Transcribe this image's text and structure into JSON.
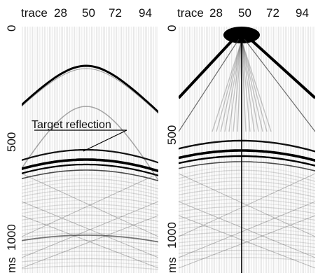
{
  "x_axis": {
    "label": "trace",
    "ticks": [
      "28",
      "50",
      "72",
      "94"
    ]
  },
  "y_axis": {
    "unit": "ms",
    "ticks": [
      "0",
      "500",
      "1000"
    ]
  },
  "annotation": {
    "text": "Target reflection"
  },
  "panels": [
    {
      "id": "left",
      "description_hidden": true
    },
    {
      "id": "right",
      "description_hidden": true
    }
  ]
}
